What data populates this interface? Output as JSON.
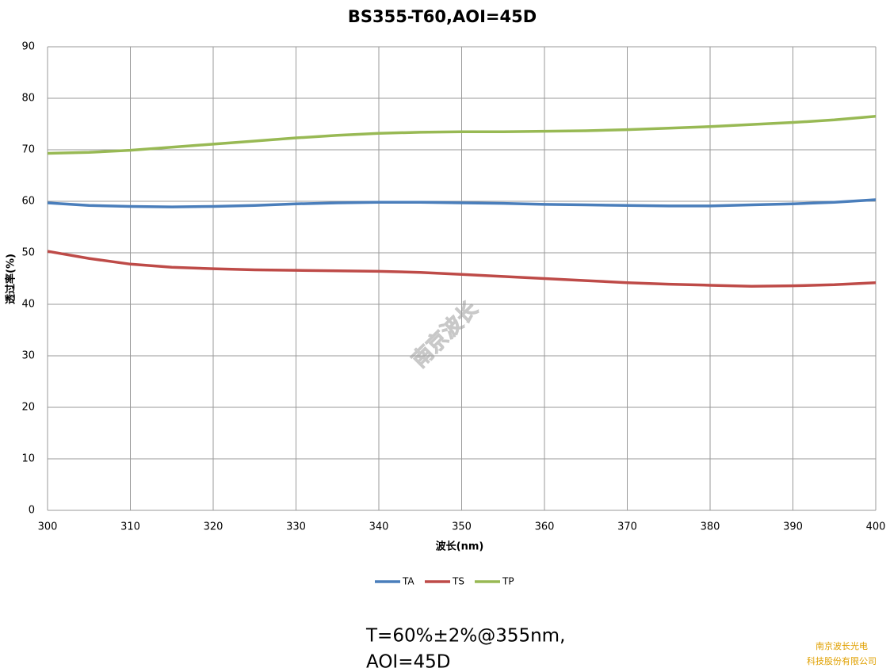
{
  "chart_data": {
    "type": "line",
    "title": "BS355-T60,AOI=45D",
    "x_label": "波长(nm)",
    "y_label": "透过率(%)",
    "x": [
      300,
      305,
      310,
      315,
      320,
      325,
      330,
      335,
      340,
      345,
      350,
      355,
      360,
      365,
      370,
      375,
      380,
      385,
      390,
      395,
      400
    ],
    "series": [
      {
        "name": "TA",
        "color": "#4a7ebb",
        "values": [
          59.7,
          59.2,
          59.0,
          58.9,
          59.0,
          59.2,
          59.5,
          59.7,
          59.8,
          59.8,
          59.7,
          59.6,
          59.4,
          59.3,
          59.2,
          59.1,
          59.1,
          59.3,
          59.5,
          59.8,
          60.3
        ]
      },
      {
        "name": "TS",
        "color": "#be4b48",
        "values": [
          50.3,
          48.9,
          47.8,
          47.2,
          46.9,
          46.7,
          46.6,
          46.5,
          46.4,
          46.2,
          45.8,
          45.4,
          45.0,
          44.6,
          44.2,
          43.9,
          43.7,
          43.5,
          43.6,
          43.8,
          44.2
        ]
      },
      {
        "name": "TP",
        "color": "#98b954",
        "values": [
          69.3,
          69.5,
          69.9,
          70.5,
          71.1,
          71.7,
          72.3,
          72.8,
          73.2,
          73.4,
          73.5,
          73.5,
          73.6,
          73.7,
          73.9,
          74.2,
          74.5,
          74.9,
          75.3,
          75.8,
          76.5
        ]
      }
    ],
    "xlim": [
      300,
      400
    ],
    "xticks": [
      300,
      310,
      320,
      330,
      340,
      350,
      360,
      370,
      380,
      390,
      400
    ],
    "ylim": [
      0,
      90
    ],
    "yticks": [
      0,
      10,
      20,
      30,
      40,
      50,
      60,
      70,
      80,
      90
    ],
    "grid": true,
    "legend": "bottom",
    "watermark": "南京波长",
    "annotation": [
      "T=60%±2%@355nm,",
      "AOI=45D"
    ],
    "company": [
      "南京波长光电",
      "科技股份有限公司"
    ]
  }
}
